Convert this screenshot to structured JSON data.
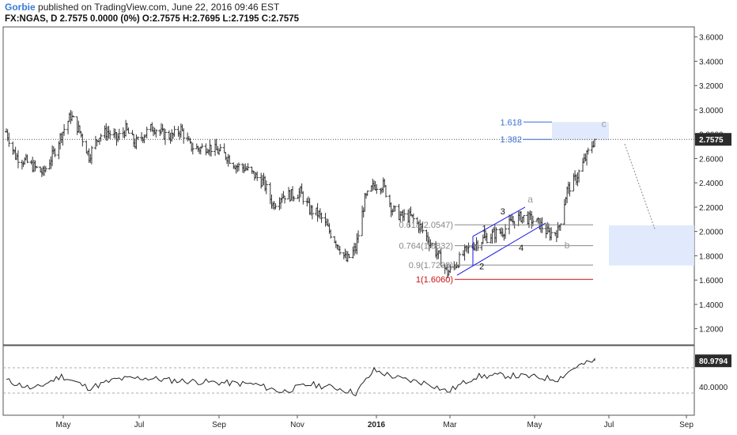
{
  "header": {
    "author": "Gorbie",
    "published": "published on TradingView.com, June 22, 2016 09:46 EST",
    "symbol_line": "FX:NGAS, D  2.7575 0.0000 (0%)  O:2.7575 H:2.7695 L:2.7195 C:2.7575"
  },
  "chart_data": [
    {
      "type": "ohlc",
      "symbol": "FX:NGAS",
      "interval": "D",
      "ylim": [
        1.1,
        3.65
      ],
      "y_ticks": [
        "1.2000",
        "1.4000",
        "1.6000",
        "1.8000",
        "2.0000",
        "2.2000",
        "2.4000",
        "2.6000",
        "2.8000",
        "3.0000",
        "3.2000",
        "3.4000",
        "3.6000"
      ],
      "x_ticks": [
        "May",
        "Jul",
        "Sep",
        "Nov",
        "2016",
        "Mar",
        "May",
        "Jul",
        "Sep"
      ],
      "last_price_label": "2.7575",
      "close_series": [
        {
          "x": "2015-04-01",
          "y": 2.82
        },
        {
          "x": "2015-04-08",
          "y": 2.62
        },
        {
          "x": "2015-04-15",
          "y": 2.58
        },
        {
          "x": "2015-04-22",
          "y": 2.53
        },
        {
          "x": "2015-04-29",
          "y": 2.48
        },
        {
          "x": "2015-05-06",
          "y": 2.62
        },
        {
          "x": "2015-05-13",
          "y": 2.8
        },
        {
          "x": "2015-05-20",
          "y": 2.95
        },
        {
          "x": "2015-05-27",
          "y": 2.82
        },
        {
          "x": "2015-06-03",
          "y": 2.62
        },
        {
          "x": "2015-06-10",
          "y": 2.78
        },
        {
          "x": "2015-06-17",
          "y": 2.82
        },
        {
          "x": "2015-06-24",
          "y": 2.76
        },
        {
          "x": "2015-07-01",
          "y": 2.84
        },
        {
          "x": "2015-07-08",
          "y": 2.72
        },
        {
          "x": "2015-07-15",
          "y": 2.8
        },
        {
          "x": "2015-07-22",
          "y": 2.86
        },
        {
          "x": "2015-07-29",
          "y": 2.8
        },
        {
          "x": "2015-08-05",
          "y": 2.78
        },
        {
          "x": "2015-08-12",
          "y": 2.84
        },
        {
          "x": "2015-08-19",
          "y": 2.7
        },
        {
          "x": "2015-08-26",
          "y": 2.68
        },
        {
          "x": "2015-09-02",
          "y": 2.7
        },
        {
          "x": "2015-09-09",
          "y": 2.66
        },
        {
          "x": "2015-09-16",
          "y": 2.62
        },
        {
          "x": "2015-09-23",
          "y": 2.54
        },
        {
          "x": "2015-09-30",
          "y": 2.52
        },
        {
          "x": "2015-10-07",
          "y": 2.46
        },
        {
          "x": "2015-10-14",
          "y": 2.4
        },
        {
          "x": "2015-10-21",
          "y": 2.22
        },
        {
          "x": "2015-10-28",
          "y": 2.3
        },
        {
          "x": "2015-11-04",
          "y": 2.3
        },
        {
          "x": "2015-11-11",
          "y": 2.32
        },
        {
          "x": "2015-11-18",
          "y": 2.18
        },
        {
          "x": "2015-11-25",
          "y": 2.14
        },
        {
          "x": "2015-12-02",
          "y": 2.02
        },
        {
          "x": "2015-12-09",
          "y": 1.9
        },
        {
          "x": "2015-12-16",
          "y": 1.76
        },
        {
          "x": "2015-12-23",
          "y": 1.86
        },
        {
          "x": "2015-12-30",
          "y": 2.26
        },
        {
          "x": "2016-01-06",
          "y": 2.38
        },
        {
          "x": "2016-01-13",
          "y": 2.38
        },
        {
          "x": "2016-01-20",
          "y": 2.18
        },
        {
          "x": "2016-01-27",
          "y": 2.12
        },
        {
          "x": "2016-02-03",
          "y": 2.12
        },
        {
          "x": "2016-02-10",
          "y": 2.04
        },
        {
          "x": "2016-02-17",
          "y": 1.92
        },
        {
          "x": "2016-02-24",
          "y": 1.8
        },
        {
          "x": "2016-03-02",
          "y": 1.66
        },
        {
          "x": "2016-03-09",
          "y": 1.74
        },
        {
          "x": "2016-03-16",
          "y": 1.84
        },
        {
          "x": "2016-03-23",
          "y": 1.9
        },
        {
          "x": "2016-03-30",
          "y": 1.94
        },
        {
          "x": "2016-04-06",
          "y": 1.98
        },
        {
          "x": "2016-04-13",
          "y": 2.0
        },
        {
          "x": "2016-04-20",
          "y": 2.08
        },
        {
          "x": "2016-04-27",
          "y": 2.12
        },
        {
          "x": "2016-05-04",
          "y": 2.1
        },
        {
          "x": "2016-05-11",
          "y": 2.06
        },
        {
          "x": "2016-05-18",
          "y": 1.98
        },
        {
          "x": "2016-05-25",
          "y": 2.0
        },
        {
          "x": "2016-06-01",
          "y": 2.34
        },
        {
          "x": "2016-06-08",
          "y": 2.44
        },
        {
          "x": "2016-06-15",
          "y": 2.6
        },
        {
          "x": "2016-06-22",
          "y": 2.7575
        }
      ],
      "fib_levels": [
        {
          "label": "1.618",
          "value": 2.9
        },
        {
          "label": "1.382",
          "value": 2.7575
        },
        {
          "label": "0.618(2.0547)",
          "value": 2.0547
        },
        {
          "label": "0.764(1.8832)",
          "value": 1.8832
        },
        {
          "label": "0.9(1.7238)",
          "value": 1.7238
        },
        {
          "label": "1(1.6060)",
          "value": 1.606
        }
      ],
      "wave_labels": [
        {
          "label": "1",
          "x": "2016-03-30",
          "y": 2.0
        },
        {
          "label": "2",
          "x": "2016-03-28",
          "y": 1.69
        },
        {
          "label": "3",
          "x": "2016-04-13",
          "y": 2.14
        },
        {
          "label": "4",
          "x": "2016-04-27",
          "y": 1.84
        },
        {
          "label": "a",
          "x": "2016-05-04",
          "y": 2.24
        },
        {
          "label": "b",
          "x": "2016-06-01",
          "y": 1.86
        },
        {
          "label": "c",
          "x": "2016-06-29",
          "y": 2.86
        }
      ]
    },
    {
      "type": "line",
      "indicator_value_label": "80.9794",
      "y_tick": "40.0000",
      "ylim": [
        0,
        100
      ],
      "reference_lines": [
        30,
        70
      ],
      "values": [
        {
          "x": "2015-04-01",
          "y": 50
        },
        {
          "x": "2015-04-22",
          "y": 36
        },
        {
          "x": "2015-05-13",
          "y": 57
        },
        {
          "x": "2015-06-03",
          "y": 38
        },
        {
          "x": "2015-06-24",
          "y": 52
        },
        {
          "x": "2015-07-15",
          "y": 54
        },
        {
          "x": "2015-08-05",
          "y": 50
        },
        {
          "x": "2015-08-26",
          "y": 48
        },
        {
          "x": "2015-09-16",
          "y": 46
        },
        {
          "x": "2015-10-07",
          "y": 44
        },
        {
          "x": "2015-10-28",
          "y": 32
        },
        {
          "x": "2015-11-18",
          "y": 44
        },
        {
          "x": "2015-12-09",
          "y": 38
        },
        {
          "x": "2015-12-23",
          "y": 30
        },
        {
          "x": "2016-01-06",
          "y": 66
        },
        {
          "x": "2016-01-27",
          "y": 52
        },
        {
          "x": "2016-02-17",
          "y": 45
        },
        {
          "x": "2016-03-02",
          "y": 32
        },
        {
          "x": "2016-03-23",
          "y": 56
        },
        {
          "x": "2016-04-13",
          "y": 58
        },
        {
          "x": "2016-05-04",
          "y": 56
        },
        {
          "x": "2016-05-25",
          "y": 52
        },
        {
          "x": "2016-06-08",
          "y": 72
        },
        {
          "x": "2016-06-22",
          "y": 80.98
        }
      ]
    }
  ]
}
